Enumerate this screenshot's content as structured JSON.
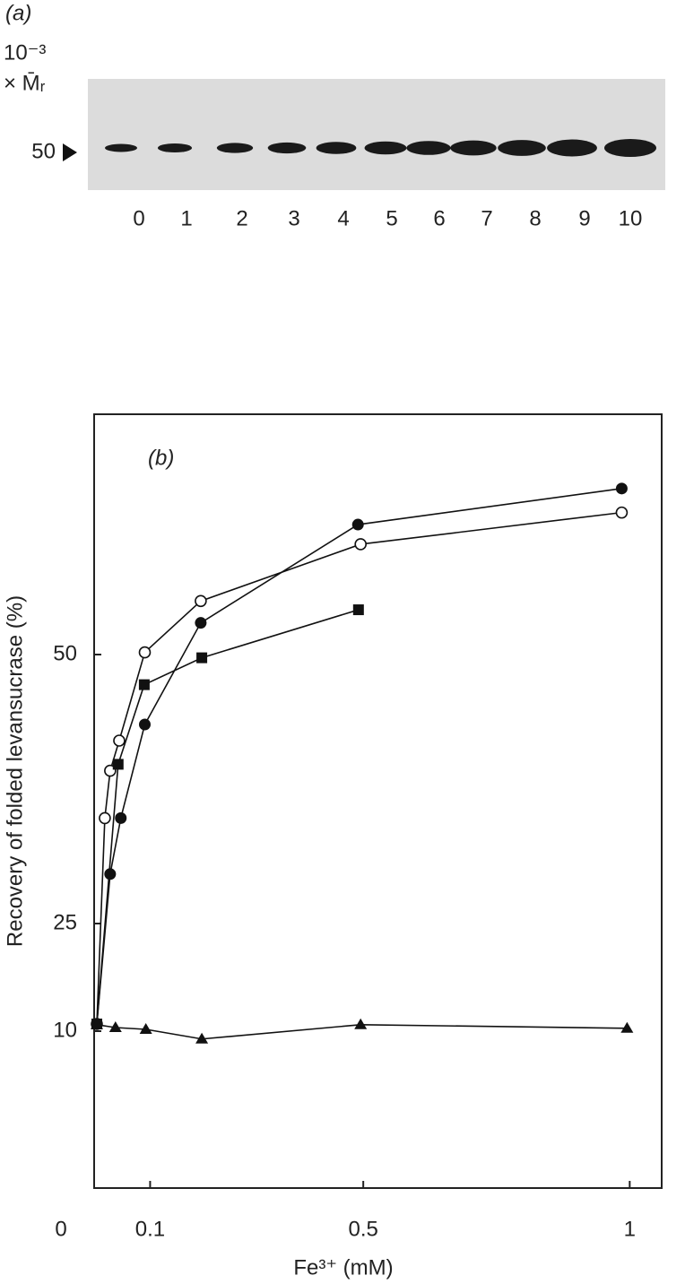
{
  "gel": {
    "label": "(a)",
    "axis_label_top": "10⁻³",
    "axis_label_bottom": "× M̄ᵣ",
    "marker": "50",
    "lanes": [
      "0",
      "1",
      "2",
      "3",
      "4",
      "5",
      "6",
      "7",
      "8",
      "9",
      "10"
    ]
  },
  "chart_data": {
    "type": "line",
    "panel_label": "(b)",
    "x_label": "Fe³⁺ (mM)",
    "y_label": "Recovery of folded levansucrase (%)",
    "xlim": [
      0,
      1.06
    ],
    "xticks": [
      0,
      0.1,
      0.5,
      1
    ],
    "ylim": [
      0,
      72
    ],
    "yticks": [
      10,
      25,
      50
    ],
    "series": [
      {
        "marker": "circle-filled",
        "color": "#111111",
        "x": [
          0,
          0.025,
          0.045,
          0.09,
          0.195,
          0.49,
          0.985
        ],
        "values": [
          11,
          29.6,
          34.8,
          43.5,
          52.9,
          61.9,
          65.2
        ]
      },
      {
        "marker": "circle-open",
        "color": "#111111",
        "x": [
          0,
          0.015,
          0.025,
          0.042,
          0.09,
          0.195,
          0.495,
          0.985
        ],
        "values": [
          11,
          34.8,
          39.2,
          42,
          50.2,
          54.9,
          60.1,
          63
        ]
      },
      {
        "marker": "square",
        "color": "#111111",
        "x": [
          0,
          0.04,
          0.089,
          0.197,
          0.491
        ],
        "values": [
          11,
          39.8,
          47.2,
          49.7,
          54.1
        ]
      },
      {
        "marker": "triangle",
        "color": "#111111",
        "x": [
          0,
          0.035,
          0.092,
          0.197,
          0.495,
          0.995
        ],
        "values": [
          10.9,
          10.5,
          10.25,
          9.5,
          10.9,
          10.4
        ]
      }
    ]
  }
}
